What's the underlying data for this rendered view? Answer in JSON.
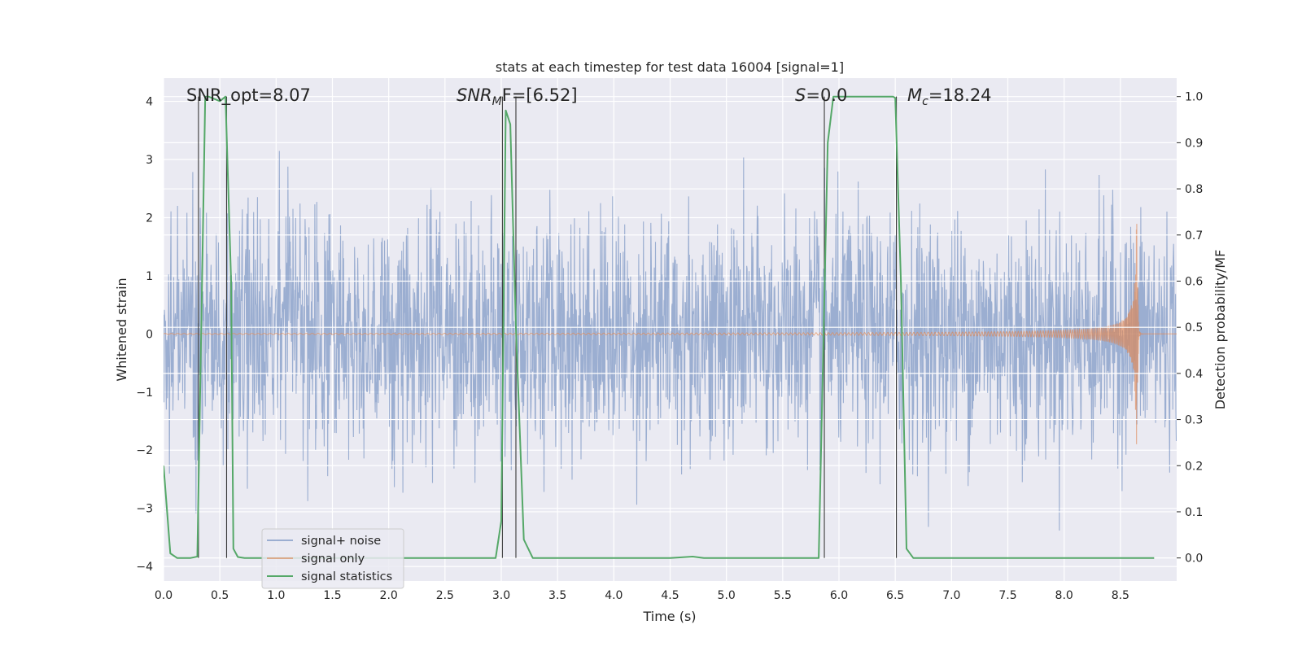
{
  "chart_data": {
    "type": "line",
    "title": "stats at each timestep for test data 16004 [signal=1]",
    "xlabel": "Time (s)",
    "ylabel": "Whitened strain",
    "y2label": "Detection probability/MF",
    "xlim": [
      0,
      9.0
    ],
    "ylim": [
      -4.25,
      4.4
    ],
    "y2lim": [
      -0.05,
      1.04
    ],
    "xticks": [
      0.0,
      0.5,
      1.0,
      1.5,
      2.0,
      2.5,
      3.0,
      3.5,
      4.0,
      4.5,
      5.0,
      5.5,
      6.0,
      6.5,
      7.0,
      7.5,
      8.0,
      8.5
    ],
    "xtick_labels": [
      "0.0",
      "0.5",
      "1.0",
      "1.5",
      "2.0",
      "2.5",
      "3.0",
      "3.5",
      "4.0",
      "4.5",
      "5.0",
      "5.5",
      "6.0",
      "6.5",
      "7.0",
      "7.5",
      "8.0",
      "8.5"
    ],
    "yticks": [
      4,
      3,
      2,
      1,
      0,
      -1,
      -2,
      -3,
      -4
    ],
    "ytick_labels": [
      "4",
      "3",
      "2",
      "1",
      "0",
      "−1",
      "−2",
      "−3",
      "−4"
    ],
    "y2ticks": [
      1.0,
      0.9,
      0.8,
      0.7,
      0.6,
      0.5,
      0.4,
      0.3,
      0.2,
      0.1,
      0.0
    ],
    "y2tick_labels": [
      "1.0",
      "0.9",
      "0.8",
      "0.7",
      "0.6",
      "0.5",
      "0.4",
      "0.3",
      "0.2",
      "0.1",
      "0.0"
    ],
    "grid": true,
    "legend_position": "lower-left",
    "series": [
      {
        "name": "signal+ noise",
        "color": "#4c72b0",
        "kind": "noise-strain",
        "sigma": 1.0,
        "approx_range": [
          -4.0,
          4.0
        ]
      },
      {
        "name": "signal only",
        "color": "#dd8452",
        "kind": "chirp",
        "peak_time": 8.65,
        "peak_amplitude": 1.9
      },
      {
        "name": "signal statistics",
        "color": "#55a868",
        "axis": "right",
        "x": [
          0.0,
          0.06,
          0.12,
          0.24,
          0.3,
          0.37,
          0.4,
          0.5,
          0.55,
          0.6,
          0.62,
          0.66,
          0.72,
          0.8,
          1.0,
          2.0,
          2.95,
          3.0,
          3.04,
          3.08,
          3.13,
          3.2,
          3.28,
          3.5,
          4.5,
          4.7,
          4.8,
          5.5,
          5.82,
          5.9,
          5.95,
          6.0,
          6.3,
          6.48,
          6.5,
          6.55,
          6.6,
          6.66,
          7.0,
          8.0,
          8.8
        ],
        "y": [
          0.2,
          0.01,
          0.0,
          0.0,
          0.003,
          1.0,
          1.0,
          0.99,
          1.0,
          0.6,
          0.02,
          0.002,
          0.0,
          0.0,
          0.0,
          0.0,
          0.0,
          0.08,
          0.97,
          0.94,
          0.5,
          0.04,
          0.0,
          0.0,
          0.0,
          0.003,
          0.0,
          0.0,
          0.0,
          0.9,
          1.0,
          1.0,
          1.0,
          1.0,
          0.997,
          0.6,
          0.02,
          0.0,
          0.0,
          0.0,
          0.0
        ]
      }
    ],
    "vlines": [
      {
        "x": 0.31,
        "ymin": 0.0,
        "ymax": 1.0
      },
      {
        "x": 0.56,
        "ymin": 0.0,
        "ymax": 1.0
      },
      {
        "x": 3.01,
        "ymin": 0.0,
        "ymax": 1.0
      },
      {
        "x": 3.13,
        "ymin": 0.0,
        "ymax": 1.0
      },
      {
        "x": 5.87,
        "ymin": 0.0,
        "ymax": 1.0
      },
      {
        "x": 6.51,
        "ymin": 0.0,
        "ymax": 1.0
      }
    ],
    "annotations": {
      "snr_opt": "SNR_opt=8.07",
      "snr_mf_prefix": "SNR",
      "snr_mf_sub": "M",
      "snr_mf_suffix": "F=[6.52]",
      "s_prefix": "S",
      "s_value": "=0.0",
      "mc_prefix": "M",
      "mc_sub": "c",
      "mc_value": "=18.24"
    }
  }
}
